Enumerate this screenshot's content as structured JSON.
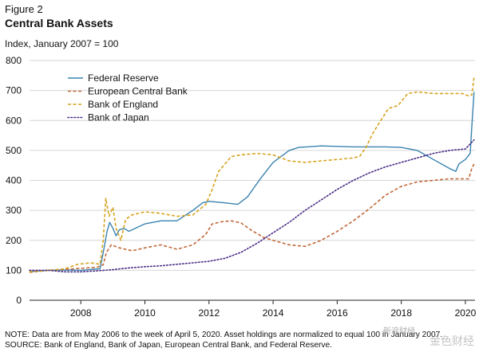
{
  "figure": {
    "label": "Figure 2",
    "title": "Central Bank Assets",
    "subtitle": "Index, January 2007 = 100",
    "note": "NOTE: Data are from May 2006 to the week of April 5, 2020. Asset holdings are normalized to equal 100 in January 2007.",
    "source": "SOURCE: Bank of England, Bank of Japan, European Central Bank, and Federal Reserve."
  },
  "watermark": {
    "text": "金色财经",
    "text2": "新浪财经"
  },
  "chart_data": {
    "type": "line",
    "title": "Central Bank Assets",
    "ylabel": "Index, January 2007 = 100",
    "xlabel": "",
    "xlim": [
      2006.4,
      2020.3
    ],
    "ylim": [
      0,
      800
    ],
    "yticks": [
      0,
      100,
      200,
      300,
      400,
      500,
      600,
      700,
      800
    ],
    "xticks": [
      2008,
      2010,
      2012,
      2014,
      2016,
      2018,
      2020
    ],
    "grid": "horizontal",
    "legend": "top-left",
    "series": [
      {
        "name": "Federal Reserve",
        "color": "#3a83b0",
        "style": "solid",
        "x": [
          2006.4,
          2007.0,
          2007.5,
          2008.0,
          2008.6,
          2008.72,
          2008.82,
          2008.9,
          2009.0,
          2009.1,
          2009.2,
          2009.35,
          2009.5,
          2009.8,
          2010.0,
          2010.5,
          2011.0,
          2011.5,
          2011.8,
          2012.0,
          2012.5,
          2012.9,
          2013.2,
          2013.6,
          2014.0,
          2014.5,
          2014.8,
          2015.5,
          2016.5,
          2017.5,
          2018.0,
          2018.5,
          2019.0,
          2019.5,
          2019.7,
          2019.8,
          2020.0,
          2020.15,
          2020.2,
          2020.27
        ],
        "values": [
          96,
          100,
          101,
          100,
          105,
          170,
          230,
          260,
          240,
          215,
          235,
          240,
          230,
          245,
          255,
          265,
          265,
          300,
          325,
          330,
          325,
          320,
          345,
          405,
          460,
          500,
          510,
          515,
          512,
          512,
          510,
          500,
          470,
          440,
          430,
          455,
          470,
          490,
          580,
          695
        ]
      },
      {
        "name": "European Central Bank",
        "color": "#c1683a",
        "style": "dashed",
        "x": [
          2006.4,
          2007.0,
          2007.8,
          2008.5,
          2008.7,
          2008.8,
          2008.95,
          2009.2,
          2009.6,
          2010.0,
          2010.5,
          2011.0,
          2011.5,
          2011.9,
          2012.1,
          2012.4,
          2012.7,
          2013.0,
          2013.3,
          2013.7,
          2014.0,
          2014.5,
          2015.0,
          2015.5,
          2016.0,
          2016.5,
          2017.0,
          2017.5,
          2018.0,
          2018.5,
          2019.0,
          2019.5,
          2019.9,
          2020.1,
          2020.2,
          2020.27
        ],
        "values": [
          93,
          100,
          105,
          110,
          118,
          160,
          185,
          175,
          165,
          175,
          185,
          170,
          185,
          220,
          255,
          262,
          265,
          258,
          235,
          210,
          200,
          185,
          180,
          200,
          230,
          265,
          305,
          350,
          380,
          395,
          400,
          405,
          405,
          405,
          440,
          455
        ]
      },
      {
        "name": "Bank of England",
        "color": "#d4a31e",
        "style": "dashed",
        "x": [
          2006.4,
          2007.0,
          2007.5,
          2007.9,
          2008.3,
          2008.6,
          2008.7,
          2008.78,
          2008.88,
          2009.0,
          2009.1,
          2009.25,
          2009.4,
          2009.6,
          2009.8,
          2010.0,
          2010.5,
          2011.0,
          2011.5,
          2011.9,
          2012.1,
          2012.3,
          2012.7,
          2013.0,
          2013.5,
          2014.0,
          2014.5,
          2015.0,
          2015.5,
          2016.0,
          2016.5,
          2016.7,
          2016.9,
          2017.1,
          2017.3,
          2017.6,
          2017.9,
          2018.2,
          2018.5,
          2019.0,
          2019.5,
          2019.9,
          2020.1,
          2020.2,
          2020.27
        ],
        "values": [
          95,
          100,
          105,
          120,
          125,
          120,
          200,
          340,
          280,
          310,
          240,
          200,
          270,
          285,
          290,
          295,
          290,
          280,
          285,
          320,
          370,
          430,
          480,
          485,
          490,
          485,
          465,
          460,
          465,
          470,
          475,
          480,
          510,
          555,
          590,
          640,
          650,
          690,
          695,
          690,
          690,
          690,
          682,
          685,
          745
        ]
      },
      {
        "name": "Bank of Japan",
        "color": "#4a2d86",
        "style": "dotted",
        "x": [
          2006.4,
          2007.0,
          2007.5,
          2008.0,
          2008.5,
          2009.0,
          2009.5,
          2010.0,
          2010.5,
          2011.0,
          2011.5,
          2012.0,
          2012.5,
          2013.0,
          2013.5,
          2014.0,
          2014.5,
          2015.0,
          2015.5,
          2016.0,
          2016.5,
          2017.0,
          2017.5,
          2018.0,
          2018.5,
          2019.0,
          2019.5,
          2020.0,
          2020.27
        ],
        "values": [
          100,
          100,
          95,
          95,
          98,
          102,
          108,
          112,
          115,
          120,
          125,
          130,
          140,
          160,
          190,
          225,
          260,
          300,
          335,
          370,
          400,
          425,
          445,
          460,
          475,
          490,
          500,
          505,
          535
        ]
      }
    ]
  }
}
